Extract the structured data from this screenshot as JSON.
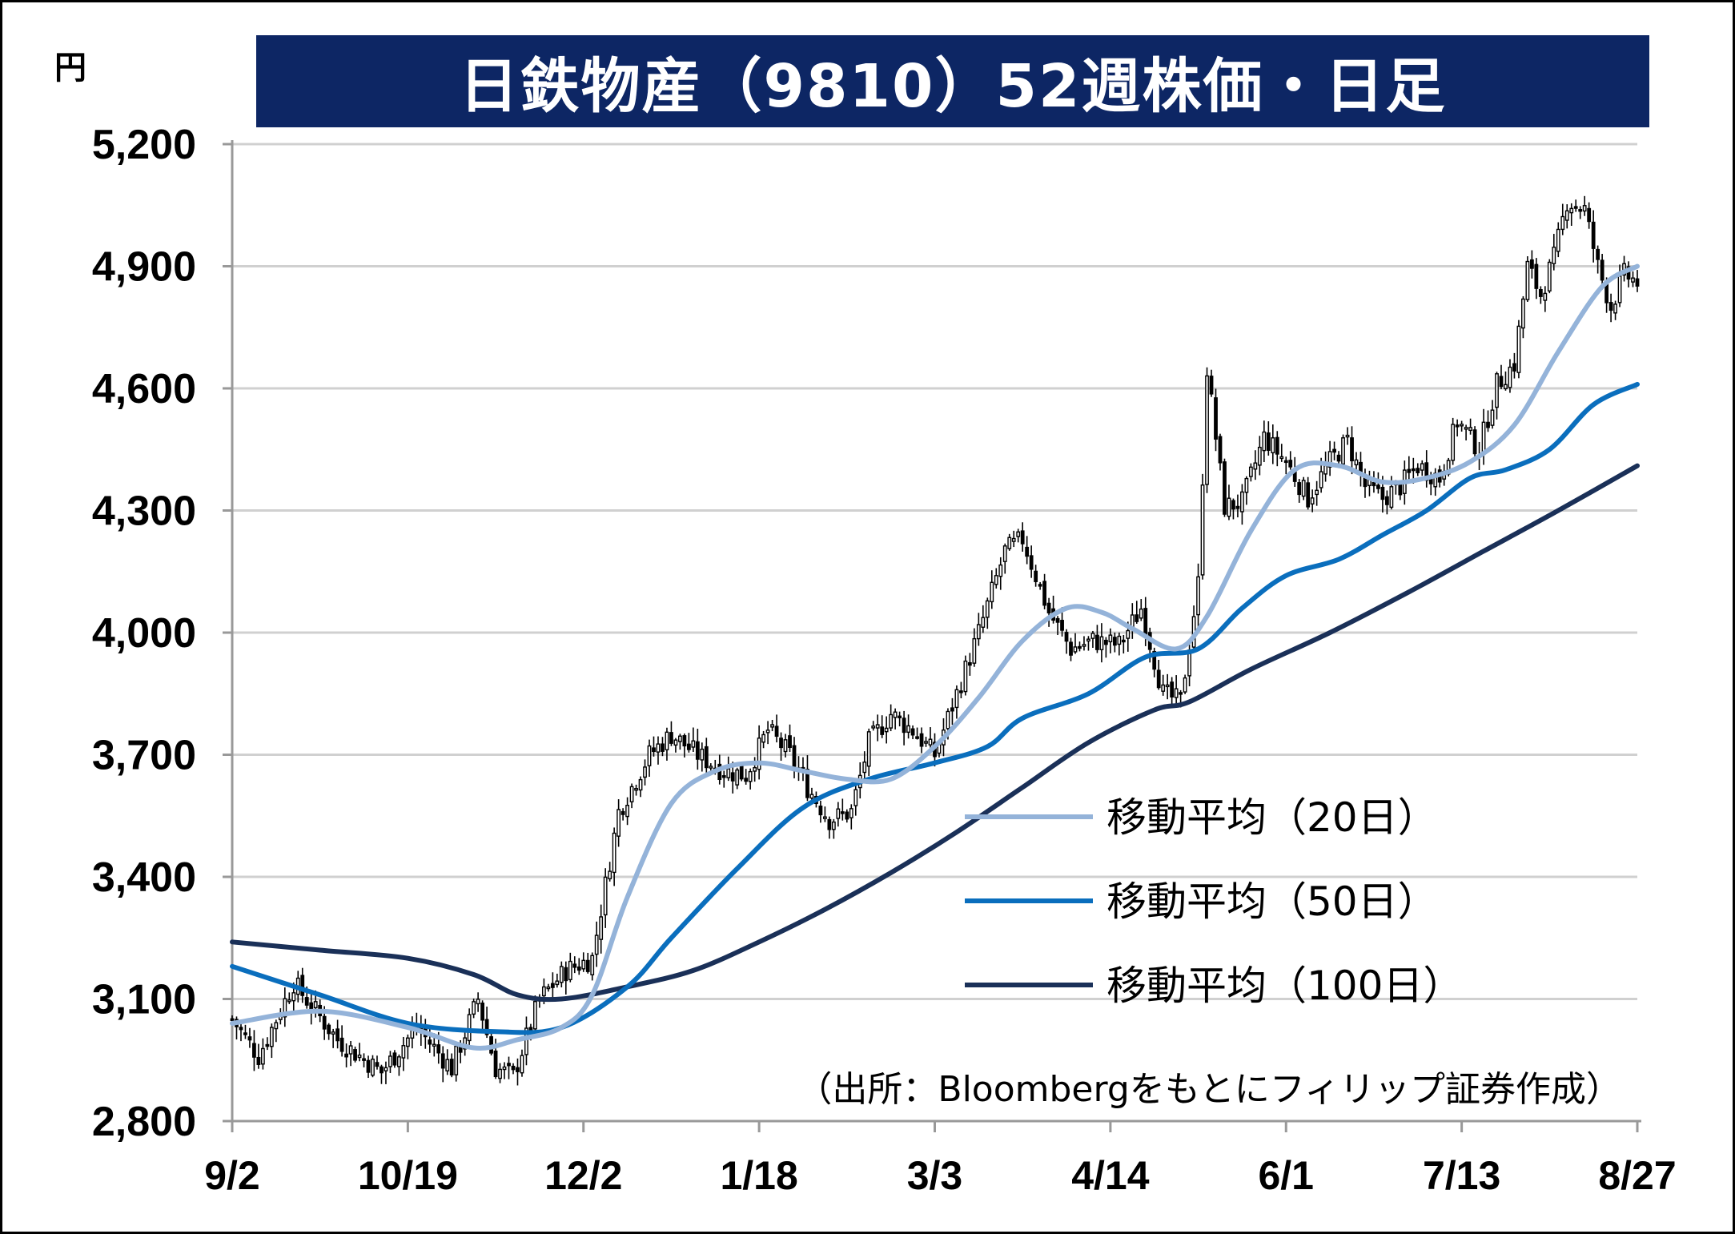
{
  "chart_data": {
    "type": "candlestick",
    "title": "日鉄物産（9810）52週株価・日足",
    "unit": "円",
    "source": "（出所：Bloombergをもとにフィリップ証券作成）",
    "ylim": [
      2800,
      5200
    ],
    "yticks": [
      2800,
      3100,
      3400,
      3700,
      4000,
      4300,
      4600,
      4900,
      5200
    ],
    "ytick_labels": [
      "2,800",
      "3,100",
      "3,400",
      "3,700",
      "4,000",
      "4,300",
      "4,600",
      "4,900",
      "5,200"
    ],
    "xlabels": [
      "9/2",
      "10/19",
      "12/2",
      "1/18",
      "3/3",
      "4/14",
      "6/1",
      "7/13",
      "8/27"
    ],
    "grid": true,
    "legend_position": "bottom-right",
    "colors": {
      "title_bg": "#0d2664",
      "ma20": "#94b3d9",
      "ma50": "#0a6ebd",
      "ma100": "#1a3058",
      "grid": "#d0d0d0",
      "candle": "#000000"
    },
    "key_prices": [
      {
        "x": 0,
        "close": 3050
      },
      {
        "x": 6,
        "close": 2960
      },
      {
        "x": 14,
        "close": 3140
      },
      {
        "x": 24,
        "close": 3000
      },
      {
        "x": 34,
        "close": 2920
      },
      {
        "x": 42,
        "close": 3030
      },
      {
        "x": 50,
        "close": 2930
      },
      {
        "x": 56,
        "close": 3100
      },
      {
        "x": 60,
        "close": 2930
      },
      {
        "x": 64,
        "close": 2910
      },
      {
        "x": 70,
        "close": 3100
      },
      {
        "x": 76,
        "close": 3170
      },
      {
        "x": 82,
        "close": 3200
      },
      {
        "x": 88,
        "close": 3560
      },
      {
        "x": 95,
        "close": 3700
      },
      {
        "x": 100,
        "close": 3750
      },
      {
        "x": 106,
        "close": 3700
      },
      {
        "x": 112,
        "close": 3660
      },
      {
        "x": 117,
        "close": 3650
      },
      {
        "x": 122,
        "close": 3760
      },
      {
        "x": 127,
        "close": 3700
      },
      {
        "x": 131,
        "close": 3620
      },
      {
        "x": 136,
        "close": 3540
      },
      {
        "x": 141,
        "close": 3560
      },
      {
        "x": 145,
        "close": 3730
      },
      {
        "x": 150,
        "close": 3800
      },
      {
        "x": 155,
        "close": 3760
      },
      {
        "x": 160,
        "close": 3700
      },
      {
        "x": 165,
        "close": 3850
      },
      {
        "x": 170,
        "close": 4000
      },
      {
        "x": 176,
        "close": 4200
      },
      {
        "x": 180,
        "close": 4230
      },
      {
        "x": 186,
        "close": 4050
      },
      {
        "x": 191,
        "close": 3960
      },
      {
        "x": 196,
        "close": 3980
      },
      {
        "x": 202,
        "close": 3970
      },
      {
        "x": 207,
        "close": 4060
      },
      {
        "x": 212,
        "close": 3850
      },
      {
        "x": 216,
        "close": 3830
      },
      {
        "x": 220,
        "close": 4120
      },
      {
        "x": 222,
        "close": 4650
      },
      {
        "x": 226,
        "close": 4310
      },
      {
        "x": 230,
        "close": 4320
      },
      {
        "x": 235,
        "close": 4480
      },
      {
        "x": 240,
        "close": 4420
      },
      {
        "x": 245,
        "close": 4330
      },
      {
        "x": 250,
        "close": 4420
      },
      {
        "x": 254,
        "close": 4470
      },
      {
        "x": 258,
        "close": 4360
      },
      {
        "x": 262,
        "close": 4330
      },
      {
        "x": 266,
        "close": 4360
      },
      {
        "x": 270,
        "close": 4410
      },
      {
        "x": 275,
        "close": 4380
      },
      {
        "x": 279,
        "close": 4520
      },
      {
        "x": 284,
        "close": 4450
      },
      {
        "x": 288,
        "close": 4610
      },
      {
        "x": 292,
        "close": 4660
      },
      {
        "x": 295,
        "close": 4900
      },
      {
        "x": 298,
        "close": 4830
      },
      {
        "x": 301,
        "close": 4920
      },
      {
        "x": 304,
        "close": 5060
      },
      {
        "x": 308,
        "close": 5040
      },
      {
        "x": 311,
        "close": 4900
      },
      {
        "x": 314,
        "close": 4800
      },
      {
        "x": 317,
        "close": 4880
      },
      {
        "x": 320,
        "close": 4860
      }
    ],
    "ma20": [
      {
        "x": 0,
        "y": 3040
      },
      {
        "x": 20,
        "y": 3070
      },
      {
        "x": 40,
        "y": 3030
      },
      {
        "x": 55,
        "y": 2980
      },
      {
        "x": 65,
        "y": 3000
      },
      {
        "x": 75,
        "y": 3030
      },
      {
        "x": 82,
        "y": 3110
      },
      {
        "x": 90,
        "y": 3350
      },
      {
        "x": 100,
        "y": 3580
      },
      {
        "x": 110,
        "y": 3660
      },
      {
        "x": 120,
        "y": 3680
      },
      {
        "x": 130,
        "y": 3660
      },
      {
        "x": 140,
        "y": 3640
      },
      {
        "x": 150,
        "y": 3640
      },
      {
        "x": 160,
        "y": 3720
      },
      {
        "x": 170,
        "y": 3840
      },
      {
        "x": 180,
        "y": 3980
      },
      {
        "x": 190,
        "y": 4060
      },
      {
        "x": 198,
        "y": 4050
      },
      {
        "x": 205,
        "y": 4010
      },
      {
        "x": 215,
        "y": 3960
      },
      {
        "x": 222,
        "y": 4040
      },
      {
        "x": 232,
        "y": 4250
      },
      {
        "x": 242,
        "y": 4400
      },
      {
        "x": 252,
        "y": 4410
      },
      {
        "x": 262,
        "y": 4370
      },
      {
        "x": 272,
        "y": 4380
      },
      {
        "x": 282,
        "y": 4420
      },
      {
        "x": 292,
        "y": 4510
      },
      {
        "x": 302,
        "y": 4690
      },
      {
        "x": 312,
        "y": 4850
      },
      {
        "x": 320,
        "y": 4900
      }
    ],
    "ma50": [
      {
        "x": 0,
        "y": 3180
      },
      {
        "x": 20,
        "y": 3110
      },
      {
        "x": 40,
        "y": 3040
      },
      {
        "x": 60,
        "y": 3020
      },
      {
        "x": 75,
        "y": 3030
      },
      {
        "x": 90,
        "y": 3130
      },
      {
        "x": 100,
        "y": 3250
      },
      {
        "x": 115,
        "y": 3420
      },
      {
        "x": 130,
        "y": 3570
      },
      {
        "x": 145,
        "y": 3640
      },
      {
        "x": 160,
        "y": 3680
      },
      {
        "x": 172,
        "y": 3720
      },
      {
        "x": 180,
        "y": 3790
      },
      {
        "x": 195,
        "y": 3850
      },
      {
        "x": 208,
        "y": 3940
      },
      {
        "x": 220,
        "y": 3960
      },
      {
        "x": 230,
        "y": 4060
      },
      {
        "x": 240,
        "y": 4140
      },
      {
        "x": 252,
        "y": 4180
      },
      {
        "x": 262,
        "y": 4240
      },
      {
        "x": 272,
        "y": 4300
      },
      {
        "x": 282,
        "y": 4380
      },
      {
        "x": 290,
        "y": 4400
      },
      {
        "x": 300,
        "y": 4450
      },
      {
        "x": 310,
        "y": 4560
      },
      {
        "x": 320,
        "y": 4610
      }
    ],
    "ma100": [
      {
        "x": 0,
        "y": 3240
      },
      {
        "x": 20,
        "y": 3220
      },
      {
        "x": 40,
        "y": 3200
      },
      {
        "x": 55,
        "y": 3160
      },
      {
        "x": 65,
        "y": 3110
      },
      {
        "x": 75,
        "y": 3100
      },
      {
        "x": 90,
        "y": 3130
      },
      {
        "x": 105,
        "y": 3170
      },
      {
        "x": 120,
        "y": 3240
      },
      {
        "x": 135,
        "y": 3320
      },
      {
        "x": 150,
        "y": 3410
      },
      {
        "x": 165,
        "y": 3510
      },
      {
        "x": 180,
        "y": 3620
      },
      {
        "x": 195,
        "y": 3730
      },
      {
        "x": 210,
        "y": 3810
      },
      {
        "x": 218,
        "y": 3830
      },
      {
        "x": 232,
        "y": 3910
      },
      {
        "x": 250,
        "y": 4000
      },
      {
        "x": 268,
        "y": 4100
      },
      {
        "x": 285,
        "y": 4200
      },
      {
        "x": 302,
        "y": 4300
      },
      {
        "x": 320,
        "y": 4410
      }
    ],
    "legend": [
      {
        "key": "ma20",
        "label": "移動平均（20日）"
      },
      {
        "key": "ma50",
        "label": "移動平均（50日）"
      },
      {
        "key": "ma100",
        "label": "移動平均（100日）"
      }
    ]
  }
}
